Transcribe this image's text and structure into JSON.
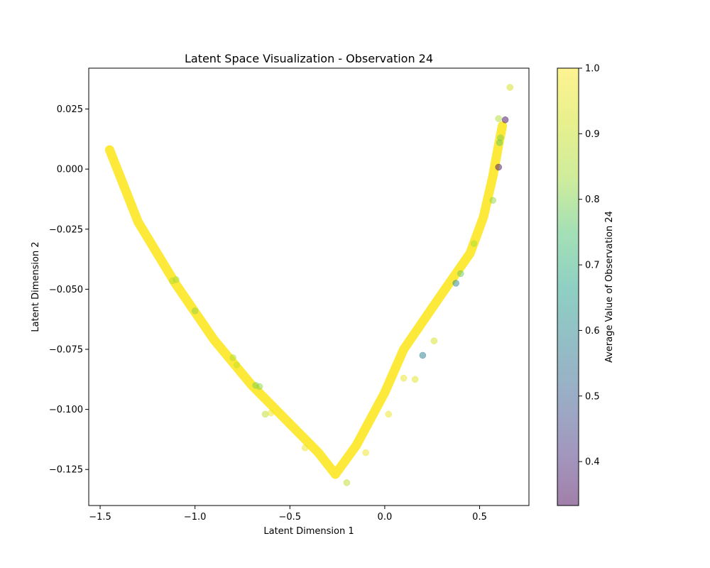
{
  "chart_data": {
    "type": "scatter",
    "title": "Latent Space Visualization - Observation 24",
    "xlabel": "Latent Dimension 1",
    "ylabel": "Latent Dimension 2",
    "xlim": [
      -1.56,
      0.76
    ],
    "ylim": [
      -0.14,
      0.042
    ],
    "xticks": [
      -1.5,
      -1.0,
      -0.5,
      0.0,
      0.5
    ],
    "xtick_labels": [
      "−1.5",
      "−1.0",
      "−0.5",
      "0.0",
      "0.5"
    ],
    "yticks": [
      0.025,
      0.0,
      -0.025,
      -0.05,
      -0.075,
      -0.1,
      -0.125
    ],
    "ytick_labels": [
      "0.025",
      "0.000",
      "−0.025",
      "−0.050",
      "−0.075",
      "−0.100",
      "−0.125"
    ],
    "grid": false,
    "colormap": "viridis",
    "point_alpha": 0.5,
    "colorbar": {
      "label": "Average Value of Observation 24",
      "range": [
        0.333,
        1.0
      ],
      "ticks": [
        0.4,
        0.5,
        0.6,
        0.7,
        0.8,
        0.9,
        1.0
      ],
      "tick_labels": [
        "0.4",
        "0.5",
        "0.6",
        "0.7",
        "0.8",
        "0.9",
        "1.0"
      ]
    },
    "main_series": {
      "value": 1.0,
      "path": [
        [
          -1.45,
          0.008
        ],
        [
          -1.3,
          -0.022
        ],
        [
          -1.1,
          -0.048
        ],
        [
          -0.9,
          -0.071
        ],
        [
          -0.7,
          -0.09
        ],
        [
          -0.5,
          -0.106
        ],
        [
          -0.35,
          -0.118
        ],
        [
          -0.26,
          -0.127
        ],
        [
          -0.15,
          -0.115
        ],
        [
          0.0,
          -0.093
        ],
        [
          0.1,
          -0.075
        ],
        [
          0.3,
          -0.052
        ],
        [
          0.45,
          -0.035
        ],
        [
          0.52,
          -0.02
        ],
        [
          0.57,
          -0.003
        ],
        [
          0.6,
          0.01
        ],
        [
          0.62,
          0.018
        ]
      ]
    },
    "outliers": [
      {
        "x": 0.66,
        "y": 0.034,
        "v": 0.92
      },
      {
        "x": 0.6,
        "y": 0.021,
        "v": 0.86
      },
      {
        "x": 0.635,
        "y": 0.0205,
        "v": 0.35
      },
      {
        "x": 0.61,
        "y": 0.013,
        "v": 0.8
      },
      {
        "x": 0.605,
        "y": 0.011,
        "v": 0.78
      },
      {
        "x": 0.6,
        "y": 0.0008,
        "v": 0.36
      },
      {
        "x": 0.57,
        "y": -0.013,
        "v": 0.82
      },
      {
        "x": 0.47,
        "y": -0.031,
        "v": 0.85
      },
      {
        "x": 0.4,
        "y": -0.0435,
        "v": 0.78
      },
      {
        "x": 0.375,
        "y": -0.0475,
        "v": 0.6
      },
      {
        "x": 0.26,
        "y": -0.0715,
        "v": 0.93
      },
      {
        "x": 0.2,
        "y": -0.0775,
        "v": 0.58
      },
      {
        "x": 0.16,
        "y": -0.0875,
        "v": 0.95
      },
      {
        "x": -1.12,
        "y": -0.0465,
        "v": 0.88
      },
      {
        "x": -1.1,
        "y": -0.046,
        "v": 0.84
      },
      {
        "x": -1.0,
        "y": -0.059,
        "v": 0.82
      },
      {
        "x": -0.8,
        "y": -0.0785,
        "v": 0.86
      },
      {
        "x": -0.78,
        "y": -0.0815,
        "v": 0.9
      },
      {
        "x": -0.68,
        "y": -0.09,
        "v": 0.8
      },
      {
        "x": -0.66,
        "y": -0.0905,
        "v": 0.82
      },
      {
        "x": -0.63,
        "y": -0.102,
        "v": 0.88
      },
      {
        "x": -0.2,
        "y": -0.1305,
        "v": 0.88
      },
      {
        "x": -0.6,
        "y": -0.1015,
        "v": 0.97
      },
      {
        "x": -0.42,
        "y": -0.116,
        "v": 0.97
      },
      {
        "x": -0.1,
        "y": -0.118,
        "v": 0.97
      },
      {
        "x": 0.02,
        "y": -0.102,
        "v": 0.97
      },
      {
        "x": 0.1,
        "y": -0.087,
        "v": 0.96
      }
    ]
  }
}
